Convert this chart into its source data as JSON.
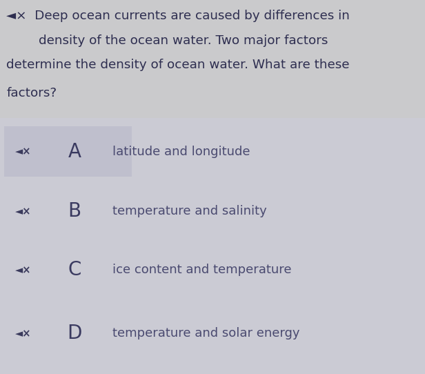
{
  "bg_top": "#cacacc",
  "bg_bottom": "#c8c8d2",
  "options_panel_color": "#cbcbd4",
  "option_A_panel_color": "#bdbdcc",
  "question_lines": [
    "◄×  Deep ocean currents are caused by differences in",
    "        density of the ocean water. Two major factors",
    "determine the density of ocean water. What are these",
    "factors?"
  ],
  "question_color": "#2e2e50",
  "options": [
    {
      "letter": "A",
      "text": "latitude and longitude"
    },
    {
      "letter": "B",
      "text": "temperature and salinity"
    },
    {
      "letter": "C",
      "text": "ice content and temperature"
    },
    {
      "letter": "D",
      "text": "temperature and solar energy"
    }
  ],
  "letter_color": "#3a3a60",
  "text_color": "#4a4a70",
  "icon_color": "#3a3a5c",
  "fig_width": 6.16,
  "fig_height": 5.42,
  "dpi": 100,
  "question_font_size": 13.2,
  "letter_font_size": 20,
  "text_font_size": 13.0,
  "icon_font_size": 10.5
}
